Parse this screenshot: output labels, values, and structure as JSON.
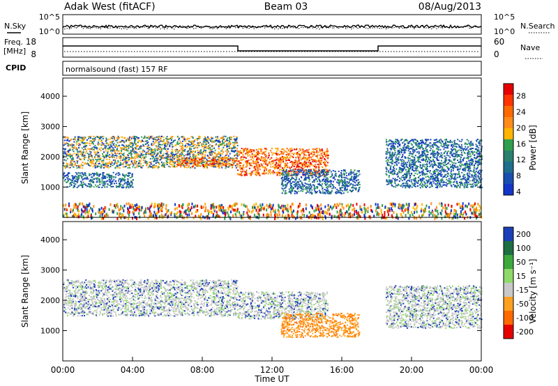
{
  "header": {
    "station": "Adak West (fitACF)",
    "beam": "Beam 03",
    "date": "08/Aug/2013"
  },
  "strip_nsky": {
    "left_label": "N.Sky",
    "right_label": "N.Search",
    "left_ticks": [
      "10^5",
      "10^0"
    ],
    "right_ticks": [
      "10^5",
      "10^0"
    ]
  },
  "strip_freq": {
    "left_label_1": "Freq.",
    "left_label_2": "[MHz]",
    "right_label": "Nave",
    "left_ticks": [
      "18",
      "8"
    ],
    "right_ticks": [
      "60",
      "0"
    ]
  },
  "cpid_strip": {
    "label": "CPID",
    "text": "normalsound (fast) 157 RF"
  },
  "chart_data": [
    {
      "type": "heatmap",
      "name": "power",
      "ylabel": "Slant Range [km]",
      "yticks": [
        "4000",
        "3000",
        "2000",
        "1000"
      ],
      "ytick_values": [
        4000,
        3000,
        2000,
        1000
      ],
      "ylim": [
        0,
        4600
      ],
      "xlim": [
        0,
        24
      ],
      "colorbar_label": "Power [dB]",
      "colorbar_ticks": [
        "28",
        "24",
        "20",
        "16",
        "12",
        "8",
        "4"
      ],
      "colorbar_colors": [
        "#e60000",
        "#ff5500",
        "#ff8c1a",
        "#ffb400",
        "#2f9e4f",
        "#1f6e8c",
        "#1436c8"
      ],
      "features": [
        {
          "x0": 0.0,
          "x1": 10.0,
          "y0": 1650,
          "y1": 2700,
          "level": "mid"
        },
        {
          "x0": 6.5,
          "x1": 10.0,
          "y0": 1700,
          "y1": 2000,
          "level": "high"
        },
        {
          "x0": 10.0,
          "x1": 15.2,
          "y0": 1400,
          "y1": 2300,
          "level": "high"
        },
        {
          "x0": 0.0,
          "x1": 4.0,
          "y0": 1000,
          "y1": 1500,
          "level": "low"
        },
        {
          "x0": 12.5,
          "x1": 17.0,
          "y0": 800,
          "y1": 1600,
          "level": "low"
        },
        {
          "x0": 18.5,
          "x1": 24.0,
          "y0": 1000,
          "y1": 2600,
          "level": "low"
        },
        {
          "x0": 0.0,
          "x1": 24.0,
          "y0": 0,
          "y1": 500,
          "level": "noise"
        }
      ]
    },
    {
      "type": "heatmap",
      "name": "velocity",
      "ylabel": "Slant Range [km]",
      "yticks": [
        "4000",
        "3000",
        "2000",
        "1000"
      ],
      "ytick_values": [
        4000,
        3000,
        2000,
        1000
      ],
      "ylim": [
        0,
        4600
      ],
      "xlim": [
        0,
        24
      ],
      "xlabel": "Time UT",
      "xticks": [
        "00:00",
        "04:00",
        "08:00",
        "12:00",
        "16:00",
        "20:00",
        "00:00"
      ],
      "colorbar_label": "Velocity [m s⁻¹]",
      "colorbar_ticks": [
        "200",
        "100",
        "50",
        "15",
        "-15",
        "-50",
        "-100",
        "-200"
      ],
      "colorbar_colors": [
        "#1b3fb8",
        "#1e6e44",
        "#3da83d",
        "#8fd96a",
        "#c8c8c8",
        "#ffa020",
        "#ff6a00",
        "#e60000"
      ],
      "features": [
        {
          "x0": 0.0,
          "x1": 10.0,
          "y0": 1500,
          "y1": 2700,
          "level": "gray"
        },
        {
          "x0": 10.0,
          "x1": 15.2,
          "y0": 1400,
          "y1": 2300,
          "level": "gray"
        },
        {
          "x0": 12.5,
          "x1": 17.0,
          "y0": 800,
          "y1": 1600,
          "level": "orange"
        },
        {
          "x0": 18.5,
          "x1": 24.0,
          "y0": 1100,
          "y1": 2500,
          "level": "gray"
        }
      ]
    }
  ]
}
